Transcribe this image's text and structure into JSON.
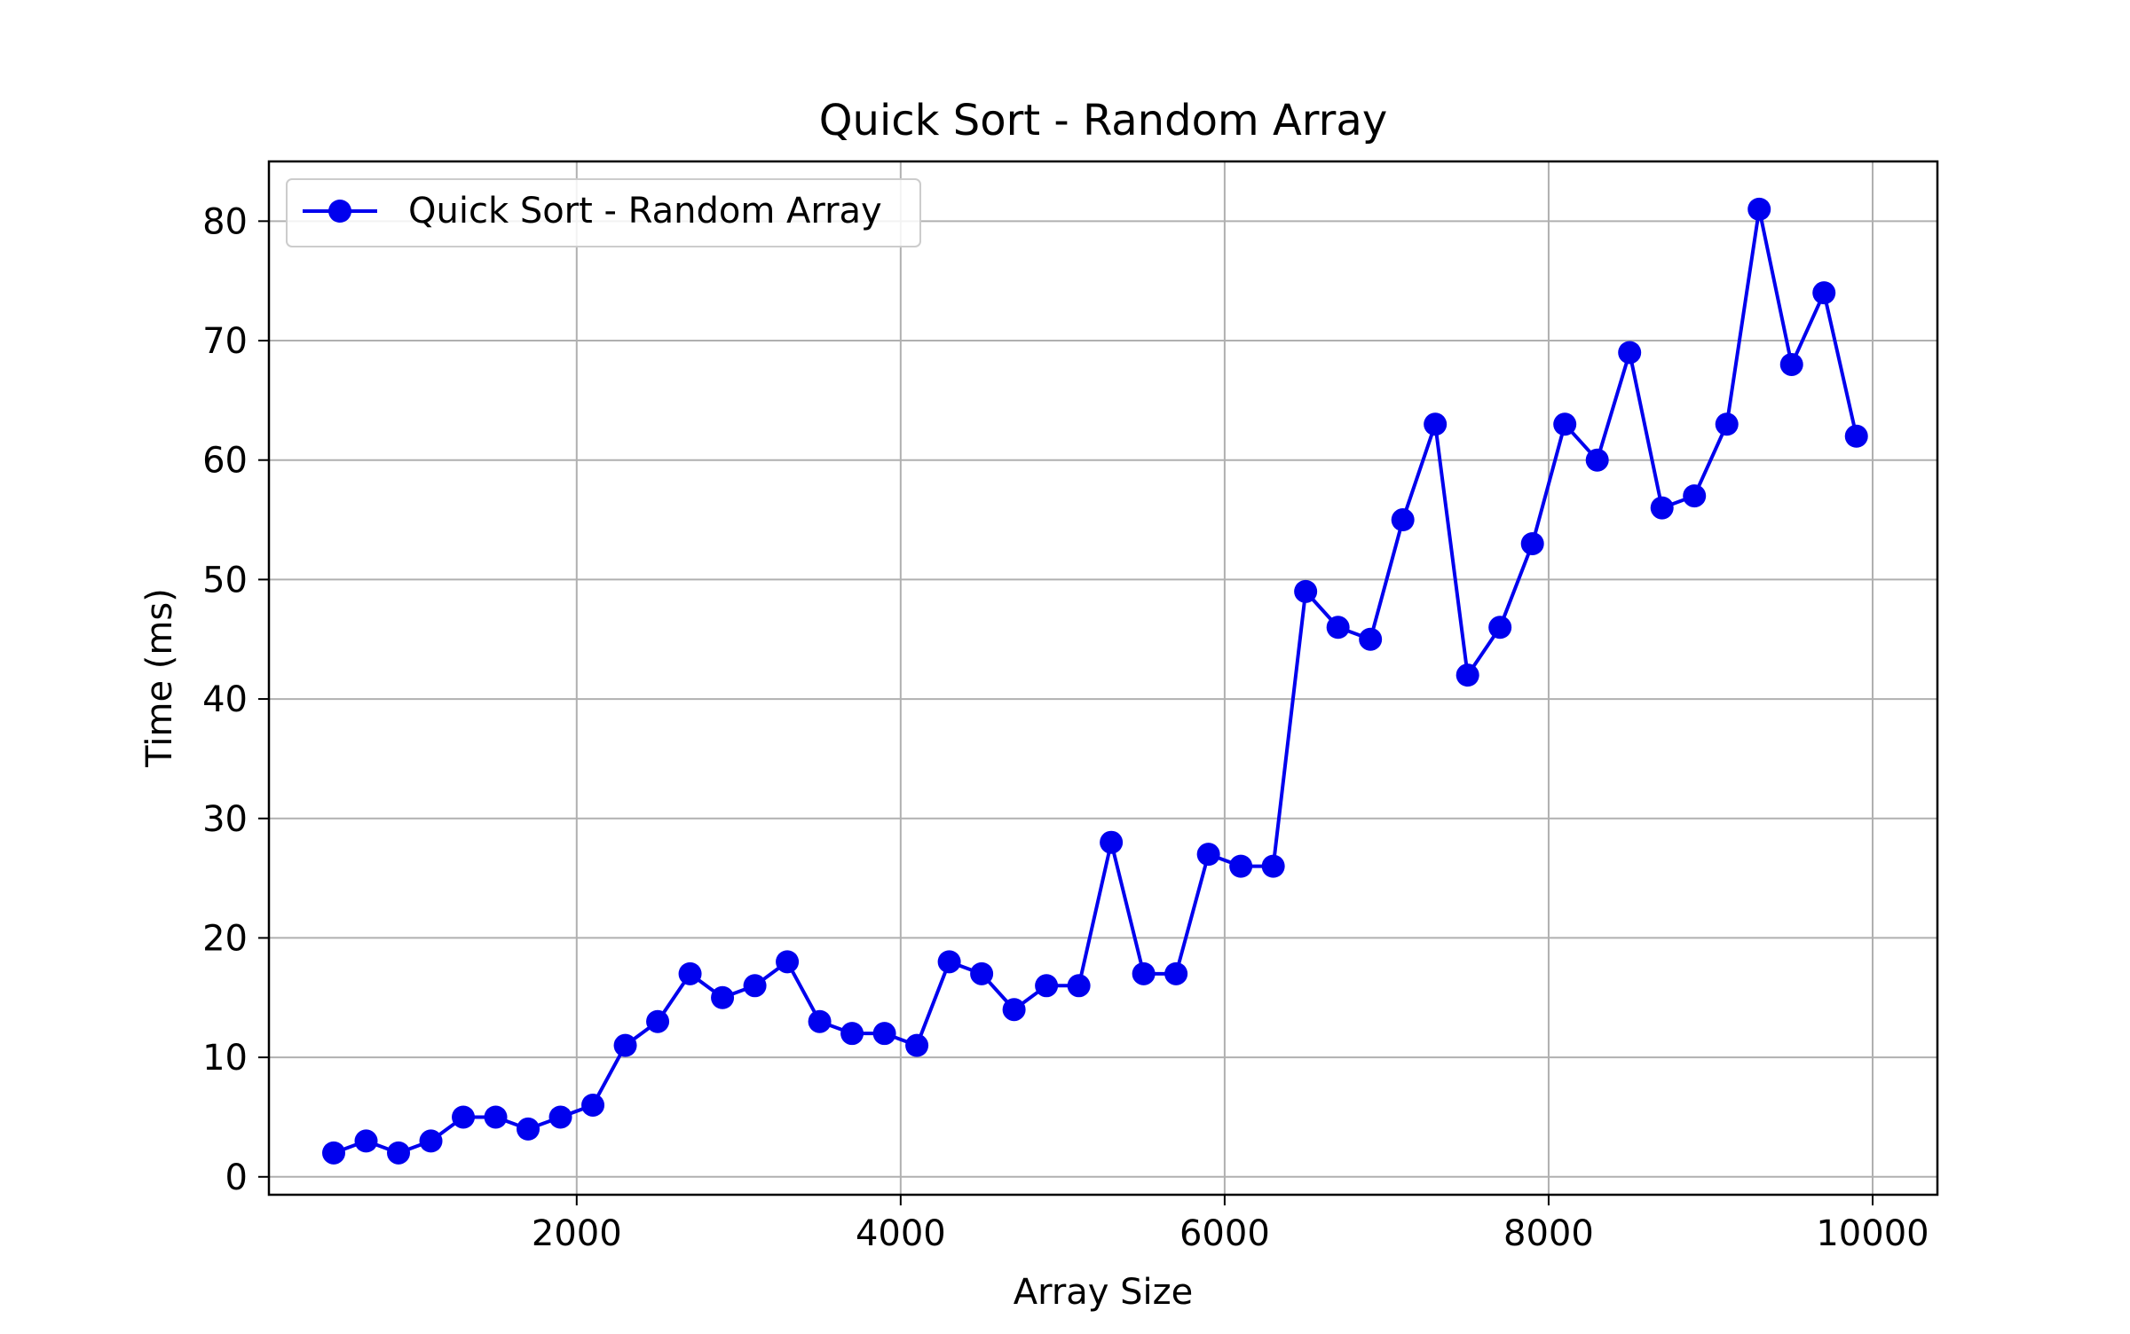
{
  "chart_data": {
    "type": "line",
    "title": "Quick Sort - Random Array",
    "xlabel": "Array Size",
    "ylabel": "Time (ms)",
    "xlim": [
      100,
      10400
    ],
    "ylim": [
      -1.5,
      85
    ],
    "xticks": [
      2000,
      4000,
      6000,
      8000,
      10000
    ],
    "yticks": [
      0,
      10,
      20,
      30,
      40,
      50,
      60,
      70,
      80
    ],
    "grid": true,
    "legend_position": "top-left",
    "series": [
      {
        "name": "Quick Sort - Random Array",
        "color": "#0000ee",
        "marker": "circle",
        "x": [
          500,
          700,
          900,
          1100,
          1300,
          1500,
          1700,
          1900,
          2100,
          2300,
          2500,
          2700,
          2900,
          3100,
          3300,
          3500,
          3700,
          3900,
          4100,
          4300,
          4500,
          4700,
          4900,
          5100,
          5300,
          5500,
          5700,
          5900,
          6100,
          6300,
          6500,
          6700,
          6900,
          7100,
          7300,
          7500,
          7700,
          7900,
          8100,
          8300,
          8500,
          8700,
          8900,
          9100,
          9300,
          9500,
          9700,
          9900
        ],
        "y": [
          2,
          3,
          2,
          3,
          5,
          5,
          4,
          5,
          6,
          11,
          13,
          17,
          15,
          16,
          18,
          13,
          12,
          12,
          11,
          18,
          17,
          14,
          16,
          16,
          28,
          17,
          17,
          27,
          26,
          26,
          49,
          46,
          45,
          55,
          63,
          42,
          46,
          53,
          63,
          60,
          69,
          56,
          57,
          63,
          81,
          68,
          74,
          62
        ]
      }
    ]
  }
}
